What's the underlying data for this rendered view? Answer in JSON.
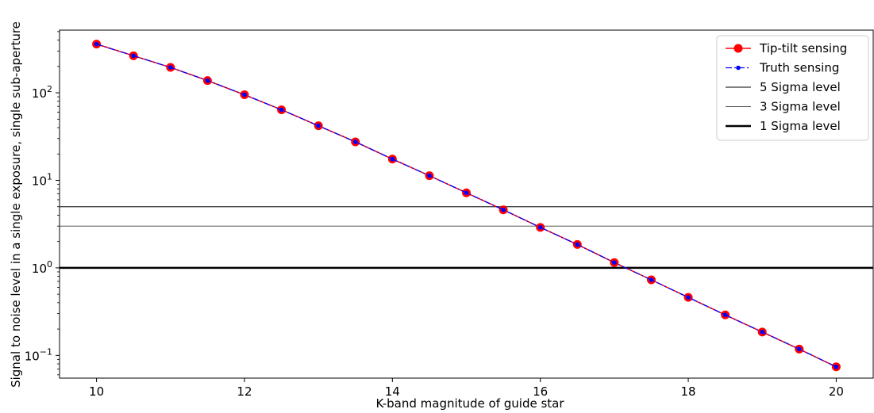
{
  "chart_data": {
    "type": "line",
    "title": "",
    "xlabel": "K-band magnitude of guide star",
    "ylabel": "Signal to noise level in a single exposure, single sub-aperture",
    "xlim": [
      9.5,
      20.5
    ],
    "ylim": [
      0.055,
      520
    ],
    "yscale": "log",
    "grid": false,
    "legend_position": "top-right",
    "xticks": [
      10,
      12,
      14,
      16,
      18,
      20
    ],
    "xtick_labels": [
      "10",
      "12",
      "14",
      "16",
      "18",
      "20"
    ],
    "yticks": [
      {
        "value": 0.1,
        "base": "10",
        "exp": "−1"
      },
      {
        "value": 1,
        "base": "10",
        "exp": "0"
      },
      {
        "value": 10,
        "base": "10",
        "exp": "1"
      },
      {
        "value": 100,
        "base": "10",
        "exp": "2"
      }
    ],
    "x": [
      10,
      10.5,
      11,
      11.5,
      12,
      12.5,
      13,
      13.5,
      14,
      14.5,
      15,
      15.5,
      16,
      16.5,
      17,
      17.5,
      18,
      18.5,
      19,
      19.5,
      20
    ],
    "series": [
      {
        "name": "Tip-tilt sensing",
        "color": "#ff0000",
        "style": "solid-circle",
        "values": [
          360,
          265,
          195,
          138,
          95,
          64,
          42,
          27.5,
          17.5,
          11.3,
          7.2,
          4.6,
          2.9,
          1.85,
          1.15,
          0.73,
          0.46,
          0.29,
          0.185,
          0.118,
          0.074
        ]
      },
      {
        "name": "Truth sensing",
        "color": "#0000ff",
        "style": "dashdot-dot",
        "values": [
          360,
          265,
          195,
          138,
          95,
          64,
          42,
          27.5,
          17.5,
          11.3,
          7.2,
          4.6,
          2.9,
          1.85,
          1.15,
          0.73,
          0.46,
          0.29,
          0.185,
          0.118,
          0.074
        ]
      }
    ],
    "hlines": [
      {
        "name": "5 Sigma level",
        "y": 5,
        "color": "#333333",
        "weight": "thin"
      },
      {
        "name": "3 Sigma level",
        "y": 3,
        "color": "#555555",
        "weight": "thinner"
      },
      {
        "name": "1 Sigma level",
        "y": 1,
        "color": "#000000",
        "weight": "thick"
      }
    ]
  }
}
